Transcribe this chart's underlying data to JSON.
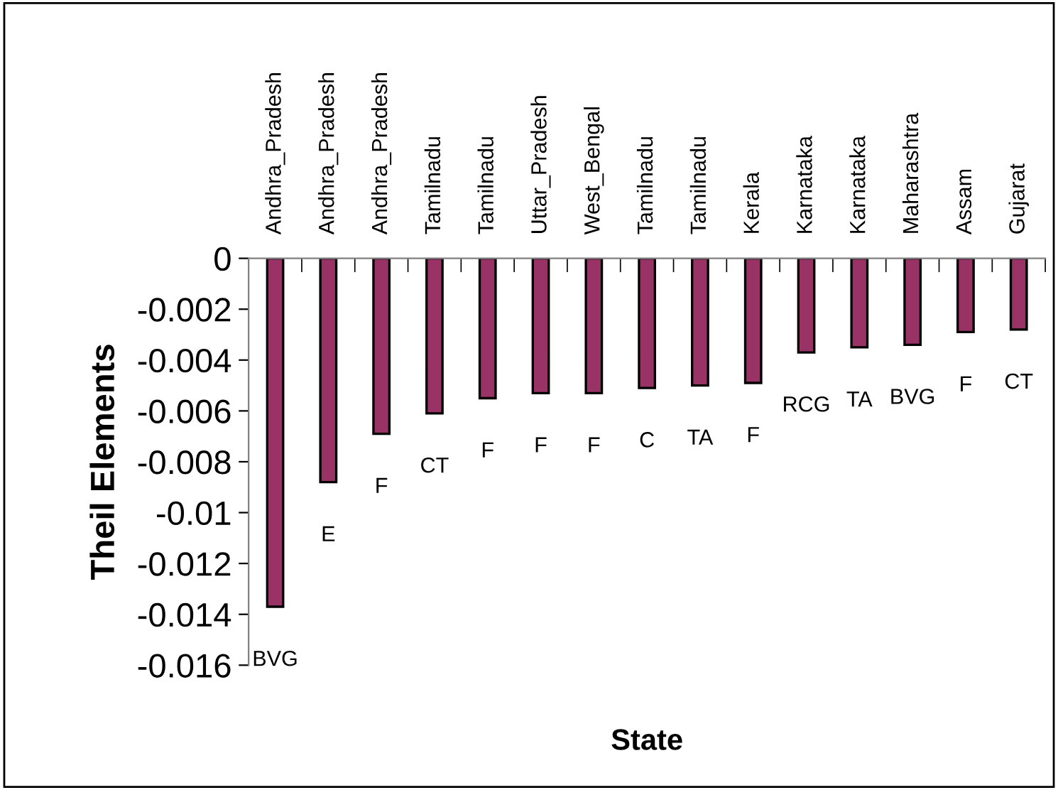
{
  "chart_data": {
    "type": "bar",
    "xlabel": "State",
    "ylabel": "Theil Elements",
    "categories": [
      "Andhra_Pradesh",
      "Andhra_Pradesh",
      "Andhra_Pradesh",
      "Tamilnadu",
      "Tamilnadu",
      "Uttar_Pradesh",
      "West_Bengal",
      "Tamilnadu",
      "Tamilnadu",
      "Kerala",
      "Karnataka",
      "Karnataka",
      "Maharashtra",
      "Assam",
      "Gujarat"
    ],
    "values": [
      -0.0137,
      -0.0088,
      -0.0069,
      -0.0061,
      -0.0055,
      -0.0053,
      -0.0053,
      -0.0051,
      -0.005,
      -0.0049,
      -0.0037,
      -0.0035,
      -0.0034,
      -0.0029,
      -0.0028
    ],
    "value_labels": [
      "BVG",
      "E",
      "F",
      "CT",
      "F",
      "F",
      "F",
      "C",
      "TA",
      "F",
      "RCG",
      "TA",
      "BVG",
      "F",
      "CT"
    ],
    "color": "#993366",
    "ylim": [
      -0.016,
      0
    ],
    "yticks": [
      {
        "value": -0.016,
        "label": "-0.016"
      },
      {
        "value": -0.014,
        "label": "-0.014"
      },
      {
        "value": -0.012,
        "label": "-0.012"
      },
      {
        "value": -0.01,
        "label": "-0.01"
      },
      {
        "value": -0.008,
        "label": "-0.008"
      },
      {
        "value": -0.006,
        "label": "-0.006"
      },
      {
        "value": -0.004,
        "label": "-0.004"
      },
      {
        "value": -0.002,
        "label": "-0.002"
      },
      {
        "value": 0,
        "label": "0"
      }
    ],
    "grid": false,
    "legend": false
  }
}
